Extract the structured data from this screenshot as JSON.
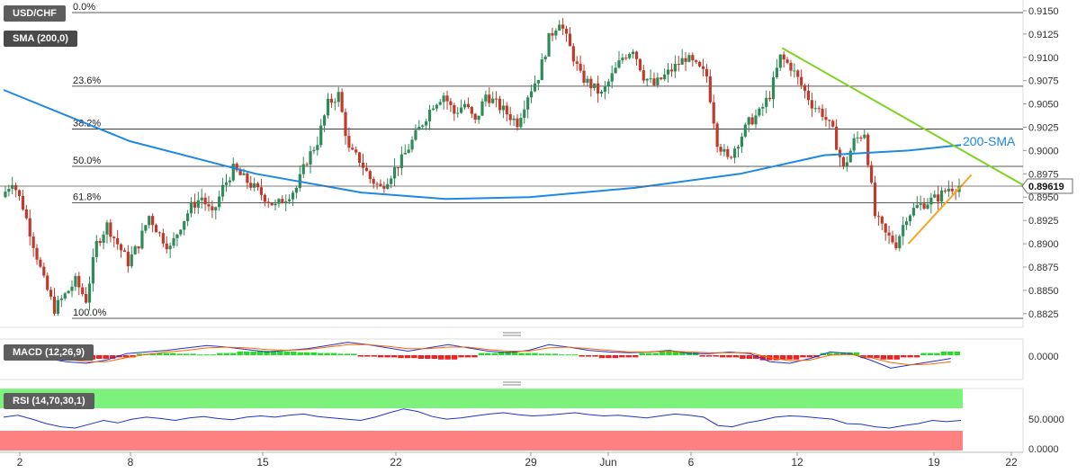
{
  "badges": {
    "symbol": "USD/CHF",
    "sma": "SMA (200,0)",
    "macd": "MACD (12,26,9)",
    "rsi": "RSI (14,70,30,1)"
  },
  "price_label": "0.89619",
  "sma_label": "200-SMA",
  "colors": {
    "up": "#2e8b57",
    "down": "#c0392b",
    "sma": "#1e88e5",
    "resistance": "#7ed321",
    "support": "#f5a623",
    "rsi_overbought": "#7cf27c",
    "rsi_oversold": "#ff8080",
    "macd_line": "#2233cc",
    "signal_line": "#ff6600"
  },
  "chart_data": [
    {
      "type": "candlestick",
      "ylim": [
        0.881,
        0.916
      ],
      "y_ticks": [
        "0.9150",
        "0.9125",
        "0.9100",
        "0.9075",
        "0.9050",
        "0.9025",
        "0.9000",
        "0.8975",
        "0.8950",
        "0.8925",
        "0.8900",
        "0.8875",
        "0.8850",
        "0.8825"
      ],
      "x_ticks": [
        "2",
        "8",
        "15",
        "22",
        "29",
        "Jun",
        "6",
        "12",
        "19",
        "22"
      ],
      "fib_levels": [
        {
          "label": "0.0%",
          "value": 0.9148
        },
        {
          "label": "23.6%",
          "value": 0.9069
        },
        {
          "label": "38.2%",
          "value": 0.9023
        },
        {
          "label": "50.0%",
          "value": 0.8983
        },
        {
          "label": "61.8%",
          "value": 0.8944
        },
        {
          "label": "100.0%",
          "value": 0.882
        }
      ],
      "last_price": 0.89619,
      "price_path": [
        0.895,
        0.8968,
        0.894,
        0.89,
        0.886,
        0.883,
        0.8845,
        0.886,
        0.884,
        0.89,
        0.892,
        0.89,
        0.888,
        0.89,
        0.893,
        0.891,
        0.8895,
        0.892,
        0.894,
        0.895,
        0.893,
        0.896,
        0.898,
        0.897,
        0.896,
        0.895,
        0.894,
        0.895,
        0.896,
        0.899,
        0.901,
        0.905,
        0.906,
        0.9,
        0.899,
        0.897,
        0.896,
        0.8975,
        0.899,
        0.901,
        0.903,
        0.905,
        0.906,
        0.904,
        0.905,
        0.903,
        0.906,
        0.905,
        0.904,
        0.903,
        0.906,
        0.908,
        0.912,
        0.914,
        0.911,
        0.908,
        0.907,
        0.906,
        0.908,
        0.91,
        0.911,
        0.908,
        0.907,
        0.908,
        0.909,
        0.91,
        0.909,
        0.908,
        0.901,
        0.899,
        0.901,
        0.903,
        0.904,
        0.906,
        0.91,
        0.909,
        0.907,
        0.905,
        0.904,
        0.902,
        0.898,
        0.901,
        0.902,
        0.893,
        0.891,
        0.89,
        0.893,
        0.894,
        0.8945,
        0.895,
        0.896,
        0.8962
      ],
      "sma200": [
        {
          "i": 0,
          "v": 0.9065
        },
        {
          "i": 12,
          "v": 0.901
        },
        {
          "i": 24,
          "v": 0.8975
        },
        {
          "i": 34,
          "v": 0.8955
        },
        {
          "i": 42,
          "v": 0.8948
        },
        {
          "i": 50,
          "v": 0.895
        },
        {
          "i": 60,
          "v": 0.896
        },
        {
          "i": 70,
          "v": 0.8975
        },
        {
          "i": 78,
          "v": 0.8995
        },
        {
          "i": 86,
          "v": 0.9
        },
        {
          "i": 91,
          "v": 0.9006
        }
      ],
      "resistance_line": [
        {
          "i": 74,
          "v": 0.911
        },
        {
          "i": 98,
          "v": 0.8956
        }
      ],
      "support_line": [
        {
          "i": 86,
          "v": 0.89
        },
        {
          "i": 92,
          "v": 0.8974
        }
      ]
    },
    {
      "type": "macd",
      "y_ticks": [
        "0.0000"
      ],
      "histogram": [
        -0.2,
        -0.4,
        -0.6,
        -0.5,
        -0.3,
        0.2,
        0.3,
        0.2,
        0.1,
        0.3,
        0.5,
        0.6,
        0.5,
        0.4,
        0.3,
        0.2,
        -0.2,
        -0.3,
        -0.4,
        -0.5,
        -0.6,
        -0.3,
        0.3,
        0.5,
        0.3,
        0.2,
        0.1,
        -0.2,
        -0.4,
        -0.3,
        0.3,
        0.6,
        0.4,
        -0.2,
        -0.3,
        -0.5,
        -0.7,
        -0.6,
        -0.3,
        0.3,
        0.4,
        -0.4,
        -0.6,
        -0.3,
        0.3,
        0.5
      ],
      "macd_line": [
        -0.4,
        -0.8,
        -1.0,
        -0.6,
        0.2,
        0.4,
        0.6,
        0.9,
        1.2,
        1.0,
        0.7,
        0.4,
        0.6,
        0.8,
        1.2,
        1.6,
        1.3,
        0.9,
        0.5,
        0.9,
        1.3,
        0.9,
        0.5,
        0.3,
        0.6,
        1.3,
        1.0,
        0.6,
        0.4,
        0.3,
        0.4,
        0.6,
        0.2,
        0.2,
        0.4,
        0.2,
        -0.8,
        -1.0,
        -0.4,
        0.4,
        0.2,
        -0.6,
        -1.6,
        -1.2,
        -0.8,
        -0.4
      ],
      "signal_line": [
        -0.3,
        -0.5,
        -0.8,
        -0.8,
        -0.3,
        0.1,
        0.4,
        0.6,
        0.9,
        1.0,
        0.9,
        0.7,
        0.6,
        0.7,
        1.0,
        1.3,
        1.3,
        1.1,
        0.8,
        0.8,
        1.0,
        1.0,
        0.7,
        0.5,
        0.5,
        0.9,
        1.0,
        0.8,
        0.6,
        0.4,
        0.4,
        0.5,
        0.4,
        0.3,
        0.3,
        0.3,
        -0.3,
        -0.7,
        -0.6,
        0.0,
        0.1,
        -0.3,
        -0.9,
        -1.2,
        -1.1,
        -0.8
      ]
    },
    {
      "type": "rsi",
      "y_ticks": [
        "50.0000",
        "0.0000"
      ],
      "overbought": 70,
      "oversold": 30,
      "values": [
        55,
        58,
        52,
        45,
        40,
        38,
        44,
        50,
        46,
        52,
        55,
        53,
        50,
        54,
        56,
        53,
        51,
        55,
        57,
        55,
        58,
        60,
        56,
        54,
        52,
        50,
        55,
        62,
        68,
        64,
        56,
        52,
        54,
        57,
        60,
        62,
        59,
        57,
        58,
        60,
        62,
        59,
        57,
        58,
        56,
        54,
        57,
        60,
        58,
        55,
        42,
        40,
        46,
        50,
        55,
        57,
        56,
        54,
        52,
        45,
        44,
        40,
        38,
        42,
        45,
        50,
        48,
        50
      ]
    }
  ]
}
